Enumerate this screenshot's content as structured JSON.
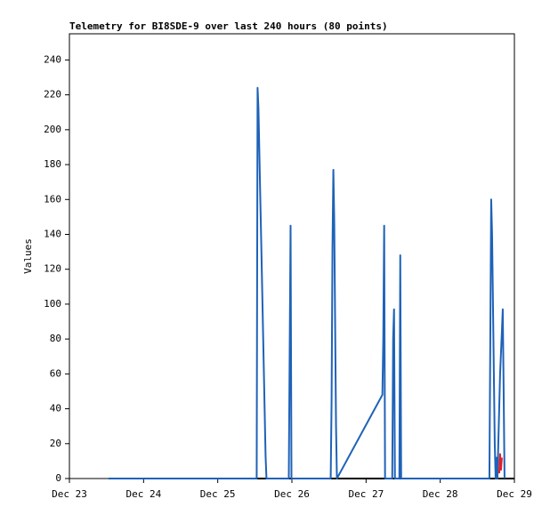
{
  "chart_data": {
    "type": "line",
    "title": "Telemetry for BI8SDE-9 over last 240 hours (80 points)",
    "y_label": "Values",
    "xlim": [
      0,
      6
    ],
    "ylim": [
      0,
      255
    ],
    "xticks": [
      {
        "value": 0,
        "label": "Dec 23"
      },
      {
        "value": 1,
        "label": "Dec 24"
      },
      {
        "value": 2,
        "label": "Dec 25"
      },
      {
        "value": 3,
        "label": "Dec 26"
      },
      {
        "value": 4,
        "label": "Dec 27"
      },
      {
        "value": 5,
        "label": "Dec 28"
      },
      {
        "value": 6,
        "label": "Dec 29"
      }
    ],
    "yticks": [
      0,
      20,
      40,
      60,
      80,
      100,
      120,
      140,
      160,
      180,
      200,
      220,
      240
    ],
    "series": [
      {
        "color": "#000000",
        "x": [
          0.529,
          6
        ],
        "values": [
          0,
          0
        ]
      },
      {
        "color": "#1f62b8",
        "x": [
          0.529,
          2.525,
          2.537,
          2.549,
          2.561,
          2.573,
          2.585,
          2.597,
          2.609,
          2.621,
          2.633,
          2.645,
          2.657,
          2.958,
          2.97,
          2.982,
          2.994,
          3.523,
          3.535,
          3.547,
          3.559,
          3.571,
          3.583,
          3.595,
          3.607,
          4.22,
          4.232,
          4.244,
          4.256,
          4.353,
          4.365,
          4.377,
          4.389,
          4.449,
          4.461,
          4.473,
          5.663,
          5.675,
          5.687,
          5.699,
          5.711,
          5.723,
          5.735,
          5.747,
          5.759,
          5.771,
          5.807,
          5.831,
          5.843,
          5.855,
          5.867
        ],
        "values": [
          0,
          0,
          224,
          212,
          187,
          162,
          138,
          113,
          88,
          63,
          38,
          13,
          0,
          0,
          73,
          145,
          0,
          0,
          44,
          132,
          177,
          147,
          88,
          30,
          0,
          48,
          80,
          145,
          0,
          0,
          80,
          97,
          0,
          0,
          128,
          0,
          0,
          80,
          160,
          140,
          100,
          60,
          20,
          0,
          12,
          0,
          60,
          84,
          97,
          50,
          0
        ]
      },
      {
        "color": "#e0202a",
        "x": [
          5.795,
          5.807,
          5.819,
          5.831
        ],
        "values": [
          3,
          14,
          5,
          12
        ]
      }
    ]
  }
}
